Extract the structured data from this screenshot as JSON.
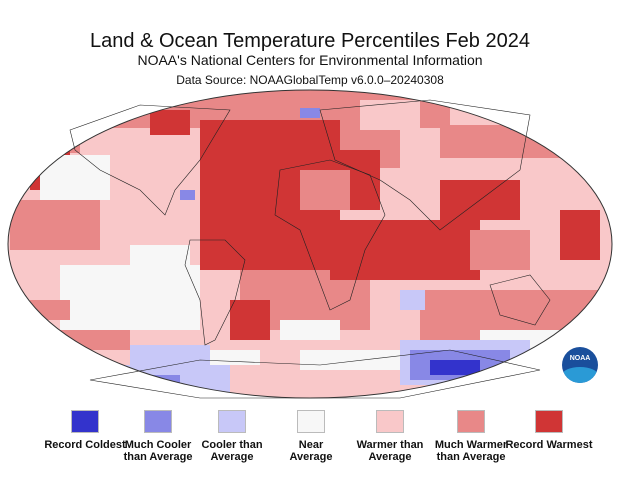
{
  "header": {
    "title": "Land & Ocean Temperature Percentiles Feb 2024",
    "subtitle": "NOAA's National Centers for Environmental Information",
    "source": "Data Source: NOAAGlobalTemp v6.0.0–20240308"
  },
  "colors": {
    "record_coldest": "#3333cc",
    "much_cooler": "#8888e6",
    "cooler": "#c8c8f8",
    "near": "#f7f7f7",
    "warmer": "#f9c8c9",
    "much_warmer": "#e88888",
    "record_warmest": "#d03535"
  },
  "legend": [
    {
      "label": "Record Coldest",
      "color": "#3333cc"
    },
    {
      "label": "Much Cooler than Average",
      "color": "#8888e6"
    },
    {
      "label": "Cooler than Average",
      "color": "#c8c8f8"
    },
    {
      "label": "Near Average",
      "color": "#f7f7f7"
    },
    {
      "label": "Warmer than Average",
      "color": "#f9c8c9"
    },
    {
      "label": "Much Warmer than Average",
      "color": "#e88888"
    },
    {
      "label": "Record Warmest",
      "color": "#d03535"
    }
  ],
  "logo": {
    "text": "NOAA"
  }
}
